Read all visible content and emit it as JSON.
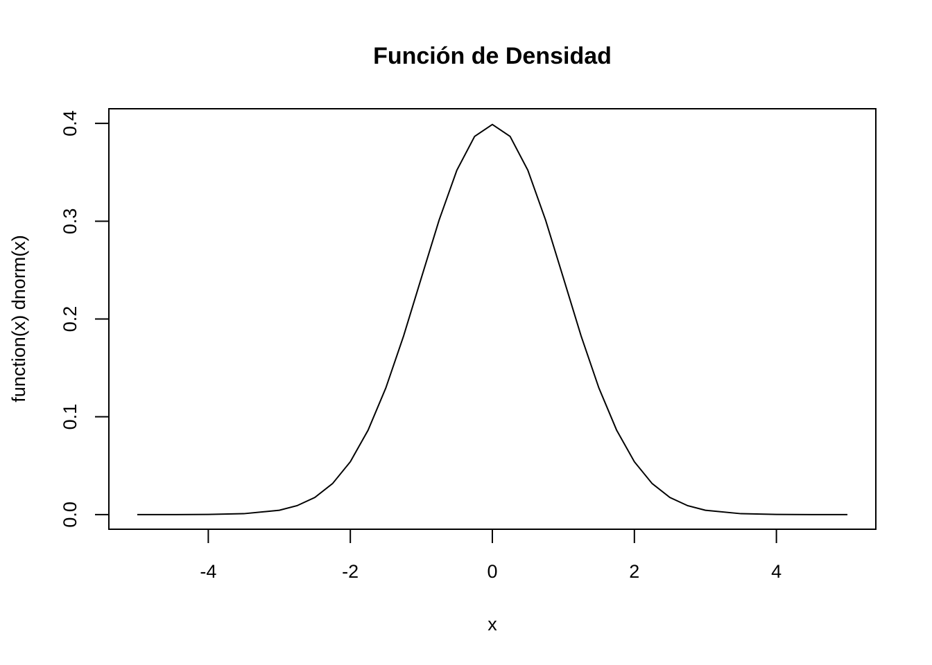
{
  "chart_data": {
    "type": "line",
    "title": "Función de Densidad",
    "xlabel": "x",
    "ylabel": "function(x) dnorm(x)",
    "xlim": [
      -5.4,
      5.4
    ],
    "ylim": [
      -0.015,
      0.415
    ],
    "x_ticks": [
      -4,
      -2,
      0,
      2,
      4
    ],
    "x_tick_labels": [
      "-4",
      "-2",
      "0",
      "2",
      "4"
    ],
    "y_ticks": [
      0.0,
      0.1,
      0.2,
      0.3,
      0.4
    ],
    "y_tick_labels": [
      "0.0",
      "0.1",
      "0.2",
      "0.3",
      "0.4"
    ],
    "grid": false,
    "legend": "none",
    "series": [
      {
        "x": [
          -5.0,
          -4.5,
          -4.0,
          -3.5,
          -3.0,
          -2.75,
          -2.5,
          -2.25,
          -2.0,
          -1.75,
          -1.5,
          -1.25,
          -1.0,
          -0.75,
          -0.5,
          -0.25,
          0.0,
          0.25,
          0.5,
          0.75,
          1.0,
          1.25,
          1.5,
          1.75,
          2.0,
          2.25,
          2.5,
          2.75,
          3.0,
          3.5,
          4.0,
          4.5,
          5.0
        ],
        "y": [
          0.0,
          0.0,
          0.0001,
          0.0009,
          0.0044,
          0.0091,
          0.0175,
          0.0317,
          0.054,
          0.0863,
          0.1295,
          0.1826,
          0.242,
          0.3011,
          0.3521,
          0.3867,
          0.3989,
          0.3867,
          0.3521,
          0.3011,
          0.242,
          0.1826,
          0.1295,
          0.0863,
          0.054,
          0.0317,
          0.0175,
          0.0091,
          0.0044,
          0.0009,
          0.0001,
          0.0,
          0.0
        ]
      }
    ],
    "line_color": "#000000"
  }
}
